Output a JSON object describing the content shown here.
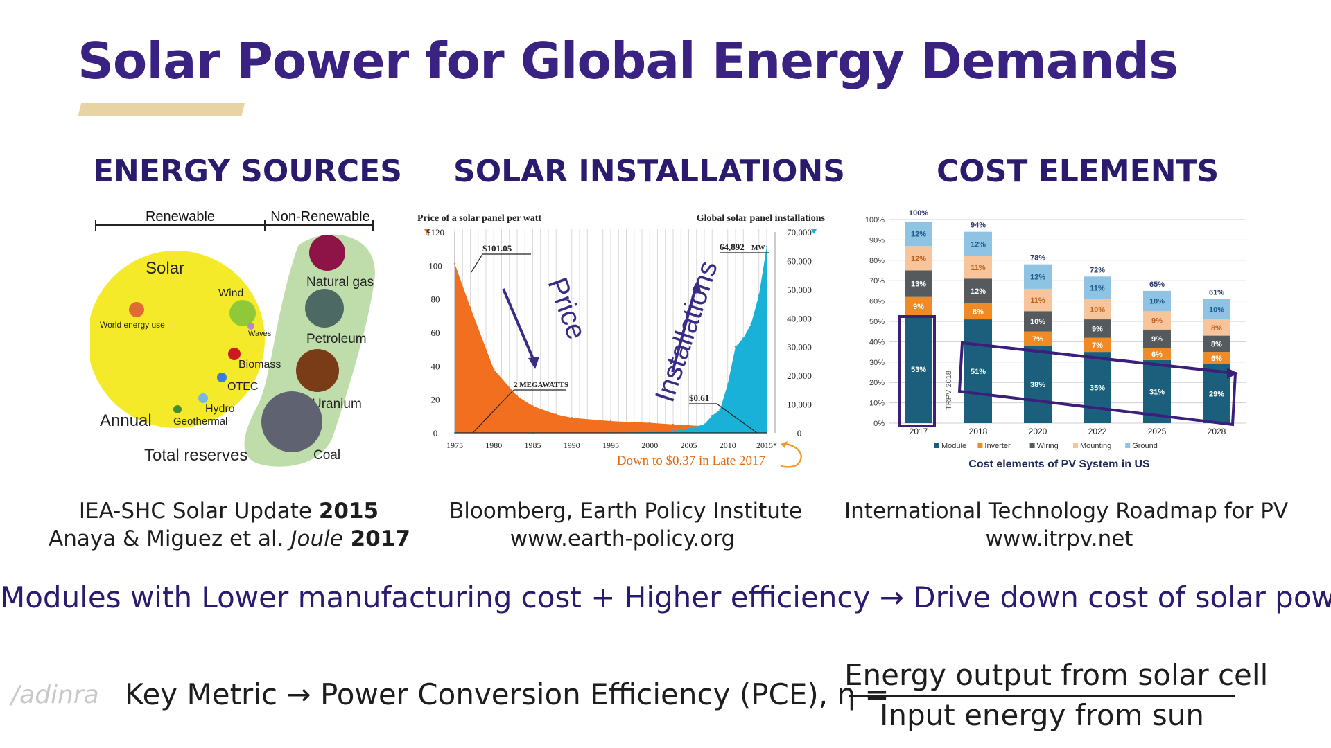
{
  "slide": {
    "title": "Solar Power for Global Energy Demands",
    "statement": "Modules with Lower manufacturing cost + Higher efficiency → Drive down cost of solar power",
    "metric": {
      "label": "Key Metric → Power Conversion Efficiency (PCE), η =",
      "numerator": "Energy output from solar cell",
      "denominator": "Input energy from sun"
    },
    "watermark": "/adinra"
  },
  "energy_sources": {
    "heading": "ENERGY SOURCES",
    "renewable_label": "Renewable",
    "nonrenewable_label": "Non-Renewable",
    "bubbles": {
      "solar": "Solar",
      "wind": "Wind",
      "world_energy_use": "World energy use",
      "waves": "Waves",
      "biomass": "Biomass",
      "otec": "OTEC",
      "hydro": "Hydro",
      "geothermal": "Geothermal",
      "annual": "Annual",
      "total_reserves": "Total reserves",
      "natural_gas": "Natural gas",
      "petroleum": "Petroleum",
      "uranium": "Uranium",
      "coal": "Coal"
    },
    "caption_line1_prefix": "IEA-SHC Solar Update ",
    "caption_line1_year": "2015",
    "caption_line2_prefix": "Anaya & Miguez et al. ",
    "caption_line2_journal": "Joule",
    "caption_line2_year": " 2017"
  },
  "solar_installations": {
    "heading": "SOLAR INSTALLATIONS",
    "left_axis_title": "Price of a solar panel per watt",
    "right_axis_title": "Global solar panel installations",
    "left_ticks": [
      "$120",
      "100",
      "80",
      "60",
      "40",
      "20",
      "0"
    ],
    "right_ticks": [
      "70,000",
      "60,000",
      "50,000",
      "40,000",
      "30,000",
      "20,000",
      "10,000",
      "0"
    ],
    "x_ticks": [
      "1975",
      "1980",
      "1985",
      "1990",
      "1995",
      "2000",
      "2005",
      "2010",
      "2015*"
    ],
    "annotation_price_high": "$101.05",
    "annotation_mw_value": "64,892",
    "annotation_mw_unit": "MW",
    "annotation_2mw": "2 MEGAWATTS",
    "annotation_price_low": "$0.61",
    "label_price": "Price",
    "label_installations": "Installations",
    "footnote": "Down to $0.37 in Late 2017",
    "caption_line1": "Bloomberg, Earth Policy Institute",
    "caption_line2": "www.earth-policy.org",
    "colors": {
      "price": "#f26f1f",
      "installations": "#19b1d8",
      "arrow": "#3b2a86"
    }
  },
  "cost_elements": {
    "heading": "COST ELEMENTS",
    "chart_title": "Cost elements of PV System in US",
    "y_ticks": [
      "100%",
      "90%",
      "80%",
      "70%",
      "60%",
      "50%",
      "40%",
      "30%",
      "20%",
      "10%",
      "0%"
    ],
    "watermark_text": "ITRPV 2018",
    "legend": [
      "Module",
      "Inverter",
      "Wiring",
      "Mounting",
      "Ground"
    ],
    "caption_line1": "International Technology Roadmap for PV",
    "caption_line2": "www.itrpv.net",
    "colors": {
      "module": "#1c5f7c",
      "inverter": "#f08a24",
      "wiring": "#555a5e",
      "mounting": "#f7c49b",
      "ground": "#8fc3e4",
      "highlight": "#3b1f7a"
    }
  },
  "chart_data": [
    {
      "type": "area",
      "title": "",
      "xlabel": "",
      "ylabel": "Price of a solar panel per watt",
      "x_range": [
        1975,
        2015
      ],
      "ylim": [
        0,
        120
      ],
      "y2label": "Global solar panel installations",
      "y2lim": [
        0,
        70000
      ],
      "series": [
        {
          "name": "Price of a solar panel per watt",
          "x": [
            1975,
            1977,
            1980,
            1983,
            1985,
            1988,
            1990,
            1995,
            2000,
            2003,
            2005,
            2007,
            2008,
            2010,
            2012,
            2015
          ],
          "values": [
            101.05,
            75,
            38,
            22,
            16,
            11,
            9,
            7,
            6,
            5,
            4.5,
            4,
            3.5,
            1.8,
            1,
            0.61
          ]
        },
        {
          "name": "Global solar panel installations",
          "x": [
            1975,
            1985,
            1995,
            2000,
            2003,
            2005,
            2007,
            2008,
            2009,
            2010,
            2011,
            2012,
            2013,
            2014,
            2015
          ],
          "values": [
            2,
            50,
            100,
            300,
            700,
            1500,
            3000,
            6000,
            8000,
            17000,
            30000,
            33000,
            38000,
            48000,
            64892
          ]
        }
      ]
    },
    {
      "type": "bar",
      "title": "Cost elements of PV System in US",
      "categories": [
        "2017",
        "2018",
        "2020",
        "2022",
        "2025",
        "2028"
      ],
      "ylim": [
        0,
        100
      ],
      "totals": [
        100,
        94,
        78,
        72,
        65,
        61
      ],
      "series": [
        {
          "name": "Module",
          "values": [
            53,
            51,
            38,
            35,
            31,
            29
          ]
        },
        {
          "name": "Inverter",
          "values": [
            9,
            8,
            7,
            7,
            6,
            6
          ]
        },
        {
          "name": "Wiring",
          "values": [
            13,
            12,
            10,
            9,
            9,
            8
          ]
        },
        {
          "name": "Mounting",
          "values": [
            12,
            11,
            11,
            10,
            9,
            8
          ]
        },
        {
          "name": "Ground",
          "values": [
            12,
            12,
            12,
            11,
            10,
            10
          ]
        }
      ]
    }
  ]
}
